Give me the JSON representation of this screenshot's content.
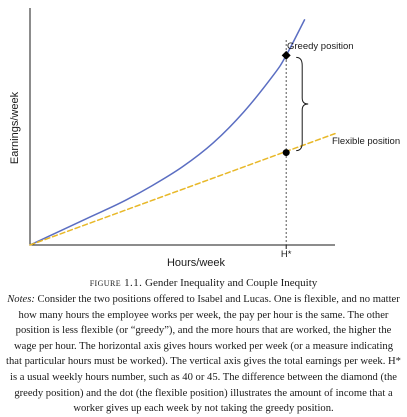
{
  "chart_data": {
    "type": "line",
    "title": "",
    "xlabel": "Hours/week",
    "ylabel": "Earnings/week",
    "xlim": [
      0,
      100
    ],
    "ylim": [
      0,
      100
    ],
    "x_ticks": [
      {
        "value": 84,
        "label": "H*"
      }
    ],
    "grid": false,
    "series": [
      {
        "name": "Greedy position",
        "color": "#5b6ec2",
        "style": "solid",
        "x": [
          0,
          10,
          20,
          30,
          40,
          50,
          60,
          70,
          80,
          84,
          90
        ],
        "y": [
          0,
          6,
          12,
          18,
          25,
          33,
          43,
          56,
          72,
          80,
          95
        ]
      },
      {
        "name": "Flexible position",
        "color": "#e8b828",
        "style": "dashed",
        "x": [
          0,
          84,
          100
        ],
        "y": [
          0,
          39,
          47
        ]
      }
    ],
    "markers": [
      {
        "series": "Greedy position",
        "x": 84,
        "y": 80,
        "shape": "diamond"
      },
      {
        "series": "Flexible position",
        "x": 84,
        "y": 39,
        "shape": "dot"
      }
    ],
    "reference_lines": [
      {
        "axis": "x",
        "value": 84,
        "style": "dotted"
      }
    ],
    "annotations": [
      {
        "type": "brace",
        "x": 84,
        "y_from": 39,
        "y_to": 80
      }
    ]
  },
  "caption": {
    "label": "FIGURE 1.1.",
    "title": "Gender Inequality and Couple Inequity",
    "notes_label": "Notes:",
    "notes_text": "Consider the two positions offered to Isabel and Lucas. One is flexible, and no matter how many hours the employee works per week, the pay per hour is the same. The other position is less flexible (or “greedy”), and the more hours that are worked, the higher the wage per hour. The horizontal axis gives hours worked per week (or a measure indicating that particular hours must be worked). The vertical axis gives the total earnings per week. H* is a usual weekly hours number, such as 40 or 45. The difference between the diamond (the greedy position) and the dot (the flexible position) illustrates the amount of income that a worker gives up each week by not taking the greedy position."
  }
}
